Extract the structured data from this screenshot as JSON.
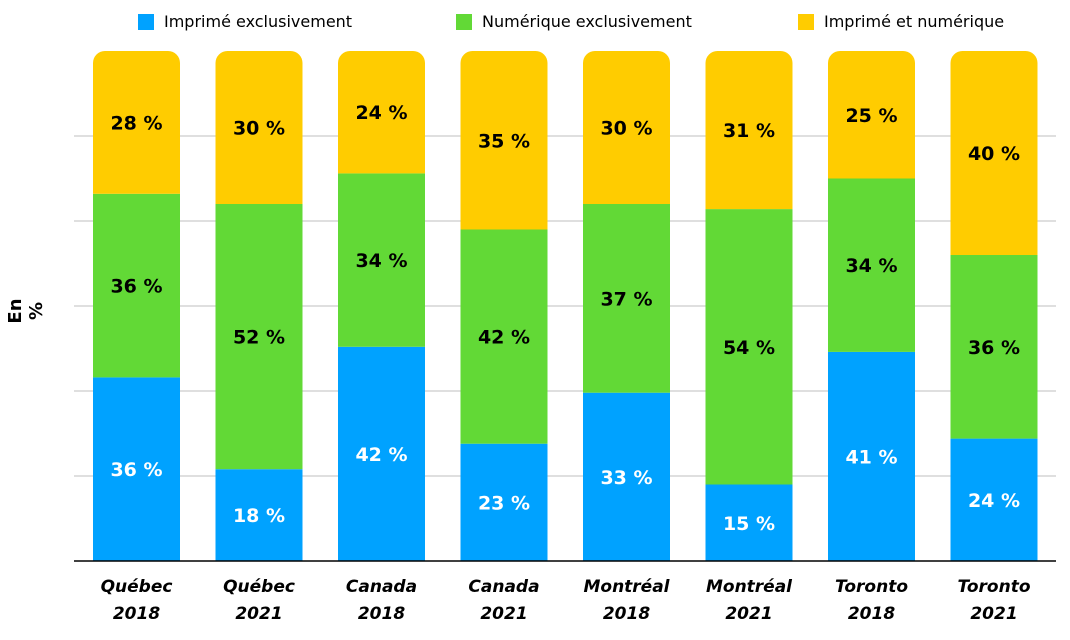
{
  "colors": {
    "print_only": "#00A2FF",
    "digital_only": "#62D936",
    "print_and_digital": "#FFCC00",
    "grid": "#BFBFBF"
  },
  "legend": [
    {
      "label": "Imprimé exclusivement",
      "color": "#00A2FF"
    },
    {
      "label": "Numérique exclusivement",
      "color": "#62D936"
    },
    {
      "label": "Imprimé et numérique",
      "color": "#FFCC00"
    }
  ],
  "chart_data": {
    "type": "bar",
    "stacked": true,
    "ylabel": "En %",
    "ylim": [
      0,
      100
    ],
    "grid": true,
    "legend_position": "top",
    "categories": [
      [
        "Québec",
        "2018"
      ],
      [
        "Québec",
        "2021"
      ],
      [
        "Canada",
        "2018"
      ],
      [
        "Canada",
        "2021"
      ],
      [
        "Montréal",
        "2018"
      ],
      [
        "Montréal",
        "2021"
      ],
      [
        "Toronto",
        "2018"
      ],
      [
        "Toronto",
        "2021"
      ]
    ],
    "series": [
      {
        "name": "Imprimé exclusivement",
        "values": [
          36,
          18,
          42,
          23,
          33,
          15,
          41,
          24
        ],
        "labels": [
          "36 %",
          "18 %",
          "42 %",
          "23 %",
          "33 %",
          "15 %",
          "41 %",
          "24 %"
        ]
      },
      {
        "name": "Numérique exclusivement",
        "values": [
          36,
          52,
          34,
          42,
          37,
          54,
          34,
          36
        ],
        "labels": [
          "36 %",
          "52 %",
          "34 %",
          "42 %",
          "37 %",
          "54 %",
          "34 %",
          "36 %"
        ]
      },
      {
        "name": "Imprimé et numérique",
        "values": [
          28,
          30,
          24,
          35,
          30,
          31,
          25,
          40
        ],
        "labels": [
          "28 %",
          "30 %",
          "24 %",
          "35 %",
          "30 %",
          "31 %",
          "25 %",
          "40 %"
        ]
      }
    ]
  }
}
